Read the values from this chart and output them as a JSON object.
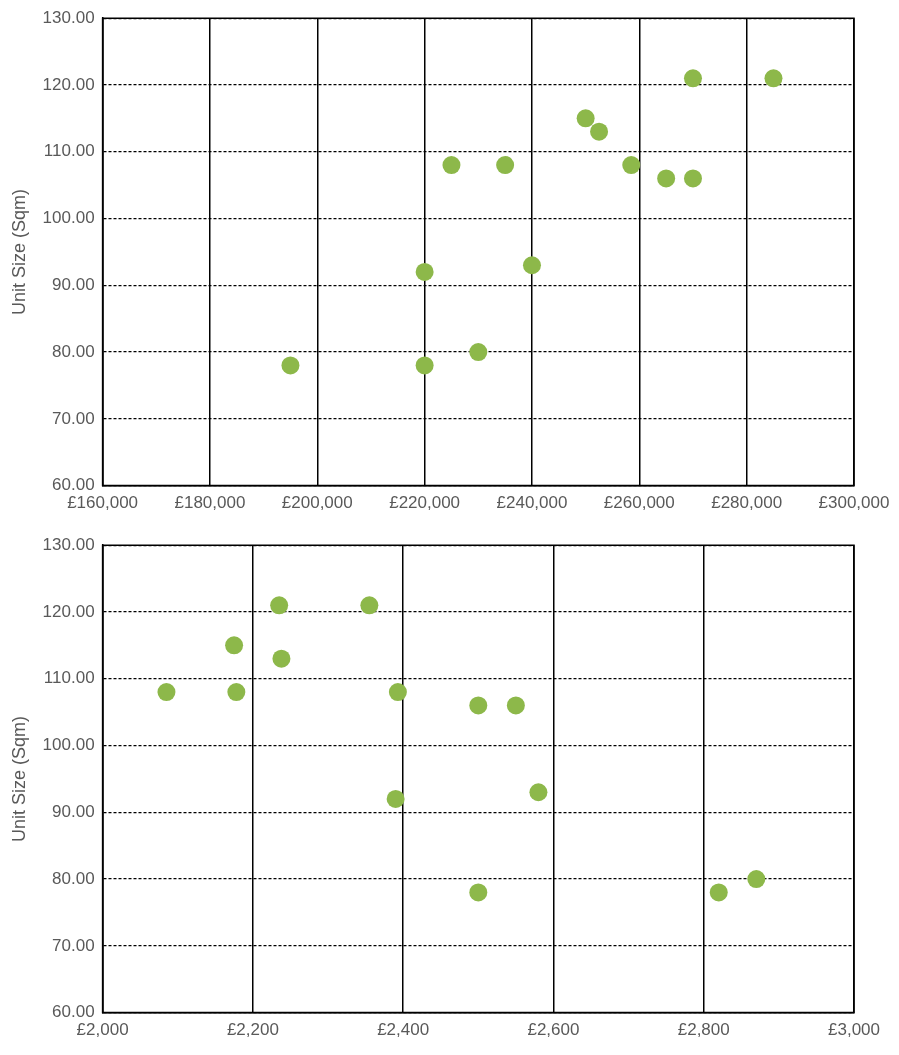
{
  "chart_data": [
    {
      "type": "scatter",
      "ylabel": "Unit Size (Sqm)",
      "marker": "circle",
      "grid": true,
      "legend": false,
      "series": [
        {
          "color": "#8db84a",
          "x": [
            195000,
            220000,
            230000,
            220000,
            240000,
            225000,
            235000,
            250000,
            252500,
            258500,
            265000,
            270000,
            270000,
            285000
          ],
          "values": [
            78,
            78,
            80,
            92,
            93,
            108,
            108,
            115,
            113,
            108,
            106,
            106,
            121,
            121
          ]
        }
      ],
      "xlim": [
        160000,
        300000
      ],
      "xticks": [
        {
          "value": 160000,
          "label": "£160,000"
        },
        {
          "value": 180000,
          "label": "£180,000"
        },
        {
          "value": 200000,
          "label": "£200,000"
        },
        {
          "value": 220000,
          "label": "£220,000"
        },
        {
          "value": 240000,
          "label": "£240,000"
        },
        {
          "value": 260000,
          "label": "£260,000"
        },
        {
          "value": 280000,
          "label": "£280,000"
        },
        {
          "value": 300000,
          "label": "£300,000"
        }
      ],
      "ylim": [
        60,
        130
      ],
      "yticks": [
        {
          "value": 60,
          "label": "60.00"
        },
        {
          "value": 70,
          "label": "70.00"
        },
        {
          "value": 80,
          "label": "80.00"
        },
        {
          "value": 90,
          "label": "90.00"
        },
        {
          "value": 100,
          "label": "100.00"
        },
        {
          "value": 110,
          "label": "110.00"
        },
        {
          "value": 120,
          "label": "120.00"
        },
        {
          "value": 130,
          "label": "130.00"
        }
      ]
    },
    {
      "type": "scatter",
      "ylabel": "Unit Size (Sqm)",
      "marker": "circle",
      "grid": true,
      "legend": false,
      "series": [
        {
          "color": "#8db84a",
          "x": [
            2085,
            2175,
            2178,
            2235,
            2238,
            2355,
            2393,
            2390,
            2500,
            2550,
            2580,
            2500,
            2820,
            2870
          ],
          "values": [
            108,
            115,
            108,
            121,
            113,
            121,
            108,
            92,
            106,
            106,
            93,
            78,
            78,
            80
          ]
        }
      ],
      "xlim": [
        2000,
        3000
      ],
      "xticks": [
        {
          "value": 2000,
          "label": "£2,000"
        },
        {
          "value": 2200,
          "label": "£2,200"
        },
        {
          "value": 2400,
          "label": "£2,400"
        },
        {
          "value": 2600,
          "label": "£2,600"
        },
        {
          "value": 2800,
          "label": "£2,800"
        },
        {
          "value": 3000,
          "label": "£3,000"
        }
      ],
      "ylim": [
        60,
        130
      ],
      "yticks": [
        {
          "value": 60,
          "label": "60.00"
        },
        {
          "value": 70,
          "label": "70.00"
        },
        {
          "value": 80,
          "label": "80.00"
        },
        {
          "value": 90,
          "label": "90.00"
        },
        {
          "value": 100,
          "label": "100.00"
        },
        {
          "value": 110,
          "label": "110.00"
        },
        {
          "value": 120,
          "label": "120.00"
        },
        {
          "value": 130,
          "label": "130.00"
        }
      ]
    }
  ]
}
